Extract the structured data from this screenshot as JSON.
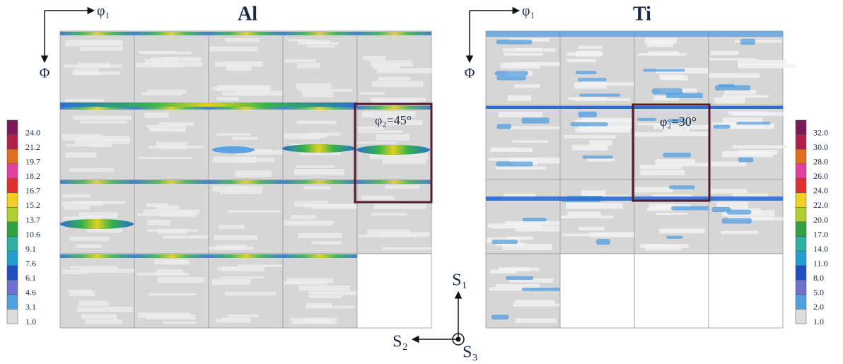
{
  "panels": [
    {
      "title": "Al",
      "axis_x": "φ₁",
      "axis_y": "Φ",
      "annotation": "φ₂=45°",
      "colorbar": [
        "24.0",
        "21.2",
        "19.7",
        "18.2",
        "16.7",
        "15.2",
        "13.7",
        "10.6",
        "9.1",
        "7.6",
        "6.1",
        "4.6",
        "3.1",
        "1.0"
      ]
    },
    {
      "title": "Ti",
      "axis_x": "φ₁",
      "axis_y": "Φ",
      "annotation": "φ₂=30°",
      "colorbar": [
        "32.0",
        "30.0",
        "28.0",
        "26.0",
        "24.0",
        "22.0",
        "20.0",
        "17.0",
        "14.0",
        "11.0",
        "8.0",
        "5.0",
        "2.0",
        "1.0"
      ]
    }
  ],
  "sample_axes": {
    "s1": "S₁",
    "s2": "S₂",
    "s3": "S₃"
  }
}
